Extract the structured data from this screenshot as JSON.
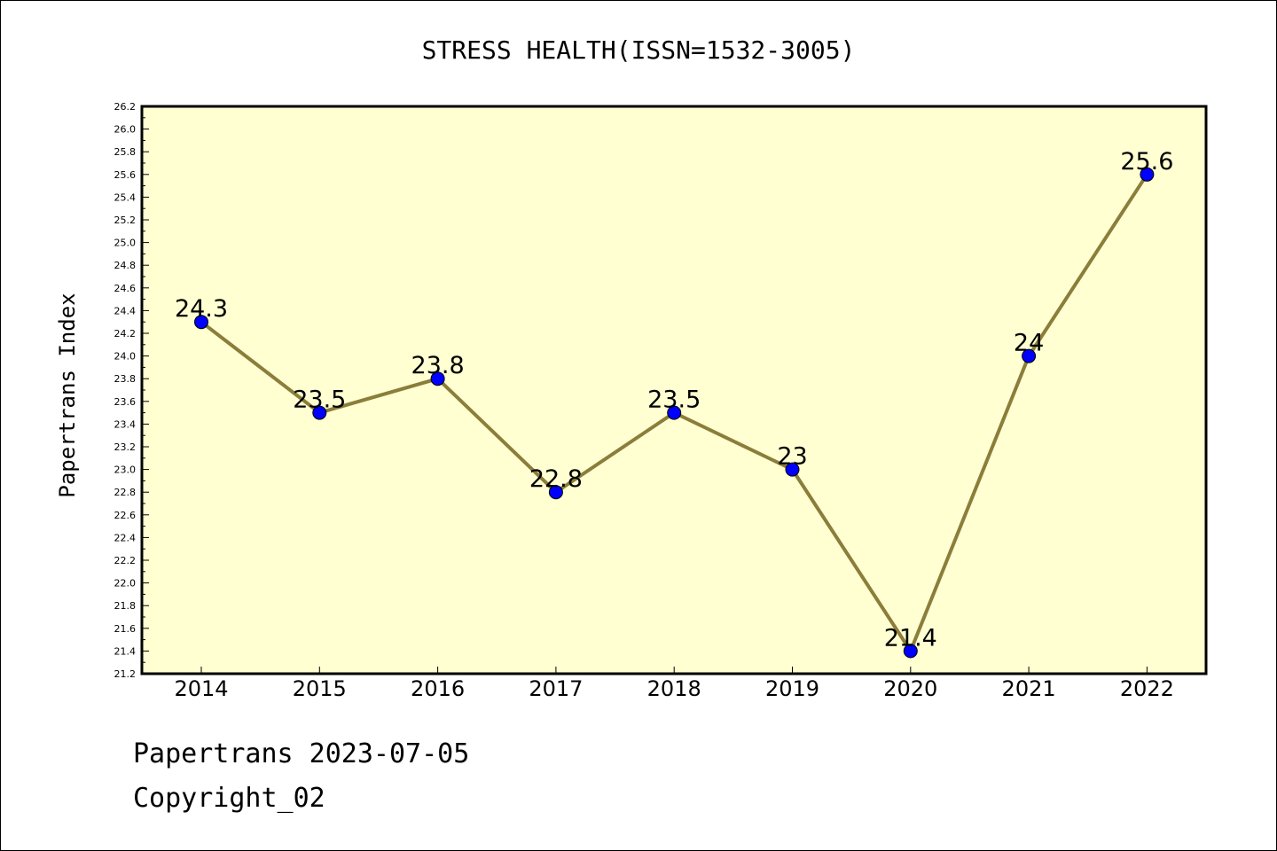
{
  "chart_data": {
    "type": "line",
    "title": "STRESS HEALTH(ISSN=1532-3005)",
    "xlabel": "",
    "ylabel": "Papertrans Index",
    "categories": [
      "2014",
      "2015",
      "2016",
      "2017",
      "2018",
      "2019",
      "2020",
      "2021",
      "2022"
    ],
    "series": [
      {
        "values": [
          24.3,
          23.5,
          23.8,
          22.8,
          23.5,
          23.0,
          21.4,
          24.0,
          25.6
        ],
        "data_labels": [
          "24.3",
          "23.5",
          "23.8",
          "22.8",
          "23.5",
          "23",
          "21.4",
          "24",
          "25.6"
        ]
      }
    ],
    "ylim": [
      21.2,
      26.2
    ],
    "yticks": [
      "21.2",
      "21.4",
      "21.6",
      "21.8",
      "22.0",
      "22.2",
      "22.4",
      "22.6",
      "22.8",
      "23.0",
      "23.2",
      "23.4",
      "23.6",
      "23.8",
      "24.0",
      "24.2",
      "24.4",
      "24.6",
      "24.8",
      "25.0",
      "25.2",
      "25.4",
      "25.6",
      "25.8",
      "26.0",
      "26.2"
    ],
    "grid": false,
    "legend": "none",
    "colors": {
      "plot_background": "#ffffd2",
      "line": "#8b7d3a",
      "marker": "#0000ff",
      "marker_edge": "#000000"
    }
  },
  "footer": {
    "line1": "Papertrans 2023-07-05",
    "line2": "Copyright_02"
  }
}
